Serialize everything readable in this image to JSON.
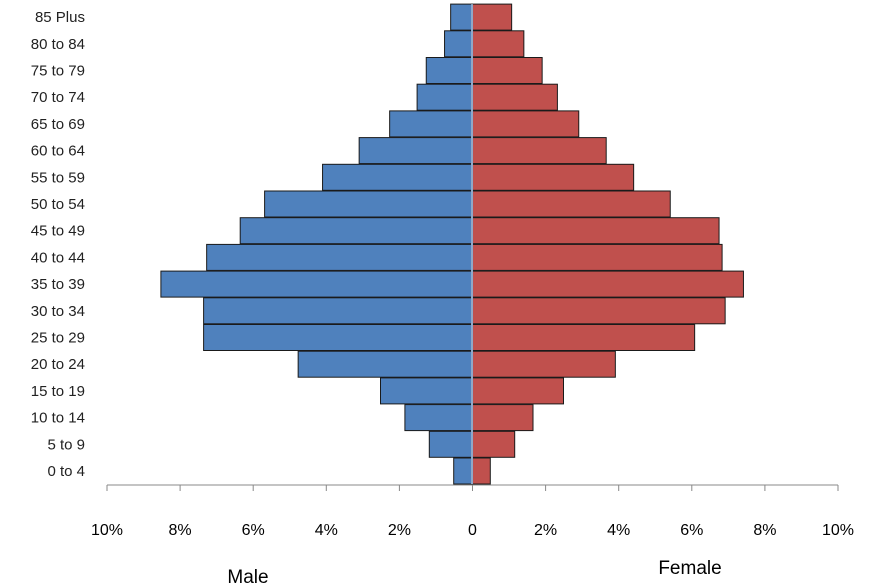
{
  "chart_data": {
    "type": "bar",
    "orientation": "horizontal",
    "title": "",
    "categories": [
      "0 to 4",
      "5 to 9",
      "10 to 14",
      "15 to 19",
      "20 to 24",
      "25 to 29",
      "30 to 34",
      "35 to 39",
      "40 to 44",
      "45 to 49",
      "50 to 54",
      "55 to 59",
      "60 to 64",
      "65 to 69",
      "70 to 74",
      "75 to 79",
      "80 to 84",
      "85 Plus"
    ],
    "series": [
      {
        "name": "Male",
        "color": "#4f81bd",
        "values": [
          0.6,
          1.4,
          2.2,
          3.0,
          5.7,
          8.8,
          8.8,
          10.2,
          8.7,
          7.6,
          6.8,
          4.9,
          3.7,
          2.7,
          1.8,
          1.5,
          0.9,
          0.7
        ]
      },
      {
        "name": "Female",
        "color": "#c0504d",
        "values": [
          0.6,
          1.4,
          2.0,
          3.0,
          4.7,
          7.3,
          8.3,
          8.9,
          8.2,
          8.1,
          6.5,
          5.3,
          4.4,
          3.5,
          2.8,
          2.3,
          1.7,
          1.3
        ]
      }
    ],
    "xlim": [
      -10,
      10
    ],
    "x_ticks": [
      "10%",
      "8%",
      "6%",
      "4%",
      "2%",
      "0",
      "2%",
      "4%",
      "6%",
      "8%",
      "10%"
    ],
    "xlabel_left": "Male",
    "xlabel_right": "Female",
    "grid": false,
    "legend": "none"
  }
}
